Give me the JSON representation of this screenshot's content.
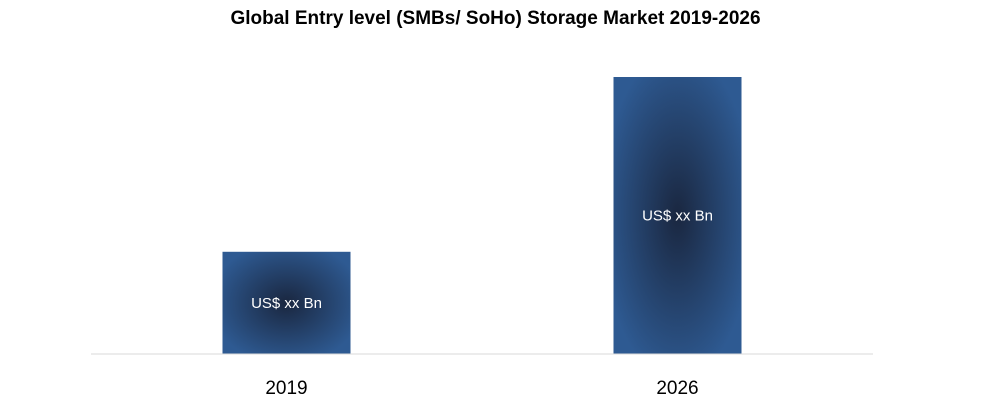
{
  "chart_data": {
    "type": "bar",
    "title": "Global Entry level (SMBs/ SoHo) Storage Market 2019-2026",
    "categories": [
      "2019",
      "2026"
    ],
    "values": [
      1,
      2.71
    ],
    "data_labels": [
      "US$ xx Bn",
      "US$ xx Bn"
    ],
    "xlabel": "",
    "ylabel": "",
    "ylim": [
      0,
      2.71
    ],
    "grid": false,
    "legend": "none",
    "colors": {
      "bar_center": "#1a2740",
      "bar_edge": "#2e5a92",
      "axis": "#d9d9d9"
    }
  }
}
